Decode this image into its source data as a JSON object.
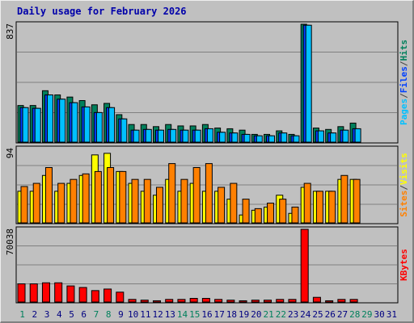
{
  "title": "Daily usage for February 2026",
  "chart_data": {
    "type": "bar",
    "title": "Daily usage for February 2026",
    "categories": [
      "1",
      "2",
      "3",
      "4",
      "5",
      "6",
      "7",
      "8",
      "9",
      "10",
      "11",
      "12",
      "13",
      "14",
      "15",
      "16",
      "17",
      "18",
      "19",
      "20",
      "21",
      "22",
      "23",
      "24",
      "25",
      "26",
      "27",
      "28",
      "29",
      "30",
      "31"
    ],
    "weekend_days": [
      "1",
      "7",
      "8",
      "14",
      "15",
      "21",
      "22",
      "28",
      "29"
    ],
    "panels": [
      {
        "key": "pages_files_hits",
        "ylabel_parts": [
          "Pages",
          "/",
          "Files",
          "/",
          "Hits"
        ],
        "ylabel_colors": [
          "#00c0ff",
          "#444444",
          "#0040ff",
          "#444444",
          "#00805c"
        ],
        "ymax_label": "837",
        "ylim": [
          0,
          837
        ],
        "series": [
          {
            "name": "Hits",
            "color": "#00805c",
            "values": [
              260,
              260,
              365,
              335,
              320,
              295,
              265,
              275,
              195,
              125,
              125,
              110,
              125,
              115,
              115,
              125,
              100,
              95,
              85,
              55,
              55,
              80,
              55,
              837,
              100,
              90,
              110,
              135,
              0,
              0,
              0
            ]
          },
          {
            "name": "Files",
            "color": "#0040ff",
            "values": [
              245,
              240,
              335,
              305,
              280,
              250,
              210,
              245,
              165,
              85,
              90,
              85,
              90,
              85,
              85,
              95,
              70,
              65,
              55,
              45,
              45,
              65,
              45,
              830,
              80,
              65,
              85,
              95,
              0,
              0,
              0
            ]
          },
          {
            "name": "Pages",
            "color": "#00c0ff",
            "values": [
              245,
              240,
              335,
              305,
              280,
              250,
              210,
              245,
              165,
              85,
              90,
              85,
              90,
              85,
              85,
              95,
              70,
              65,
              55,
              45,
              45,
              65,
              45,
              830,
              80,
              65,
              85,
              95,
              0,
              0,
              0
            ]
          }
        ]
      },
      {
        "key": "visits_sites",
        "ylabel_parts": [
          "Sites",
          "/",
          "Visits"
        ],
        "ylabel_colors": [
          "#ff8000",
          "#444444",
          "#ffff00"
        ],
        "ymax_label": "94",
        "ylim": [
          0,
          94
        ],
        "series": [
          {
            "name": "Visits",
            "color": "#ffff00",
            "values": [
              40,
              40,
              60,
              40,
              50,
              60,
              86,
              88,
              65,
              50,
              40,
              35,
              55,
              40,
              50,
              40,
              40,
              30,
              10,
              16,
              20,
              35,
              12,
              45,
              40,
              40,
              55,
              55,
              0,
              0,
              0
            ]
          },
          {
            "name": "Sites",
            "color": "#ff8000",
            "values": [
              46,
              50,
              70,
              50,
              55,
              62,
              65,
              70,
              65,
              55,
              55,
              45,
              75,
              55,
              70,
              75,
              45,
              50,
              30,
              18,
              25,
              30,
              20,
              50,
              40,
              40,
              60,
              55,
              0,
              0,
              0
            ]
          }
        ]
      },
      {
        "key": "kbytes",
        "ylabel_parts": [
          "KBytes"
        ],
        "ylabel_colors": [
          "#ff0000"
        ],
        "ymax_label": "70038",
        "ylim": [
          0,
          70038
        ],
        "series": [
          {
            "name": "KBytes",
            "color": "#ff0000",
            "values": [
              17500,
              17500,
              18500,
              18500,
              15500,
              14000,
              11000,
              12500,
              9500,
              2500,
              1800,
              1200,
              2500,
              2500,
              3500,
              3500,
              2500,
              1800,
              1200,
              1800,
              1800,
              2500,
              2500,
              70038,
              4500,
              1200,
              2500,
              2500,
              0,
              0,
              0
            ]
          }
        ]
      }
    ],
    "colors": {
      "background": "#c0c0c0",
      "grid": "#808080",
      "weekday_label": "#000080",
      "weekend_label": "#00805c",
      "title": "#0000aa"
    }
  }
}
